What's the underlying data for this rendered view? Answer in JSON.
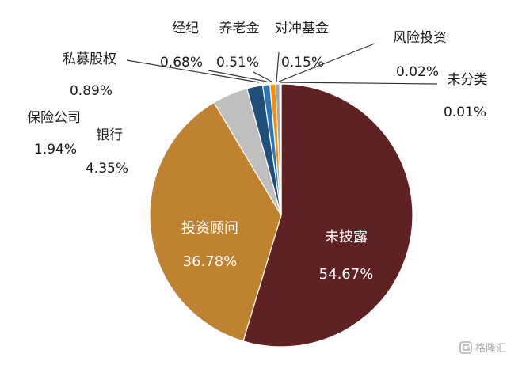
{
  "chart_data": {
    "type": "pie",
    "title": "",
    "slices": [
      {
        "label": "未披露",
        "value": 54.67,
        "value_text": "54.67%",
        "color": "#5e2222"
      },
      {
        "label": "投资顾问",
        "value": 36.78,
        "value_text": "36.78%",
        "color": "#bf8230"
      },
      {
        "label": "银行",
        "value": 4.35,
        "value_text": "4.35%",
        "color": "#bfbfbf"
      },
      {
        "label": "保险公司",
        "value": 1.94,
        "value_text": "1.94%",
        "color": "#1f4e79"
      },
      {
        "label": "私募股权",
        "value": 0.89,
        "value_text": "0.89%",
        "color": "#2e75b6"
      },
      {
        "label": "经纪",
        "value": 0.68,
        "value_text": "0.68%",
        "color": "#ff8c00"
      },
      {
        "label": "养老金",
        "value": 0.51,
        "value_text": "0.51%",
        "color": "#a5a5a5"
      },
      {
        "label": "对冲基金",
        "value": 0.15,
        "value_text": "0.15%",
        "color": "#4a5a2a"
      },
      {
        "label": "风险投资",
        "value": 0.02,
        "value_text": "0.02%",
        "color": "#3f7f3f"
      },
      {
        "label": "未分类",
        "value": 0.01,
        "value_text": "0.01%",
        "color": "#7f7f7f"
      }
    ],
    "legend": "none",
    "labels_position": "outside with leader lines for small slices; inside for large slices"
  },
  "watermark": {
    "text": "格隆汇",
    "icon": "glh-logo-icon"
  }
}
